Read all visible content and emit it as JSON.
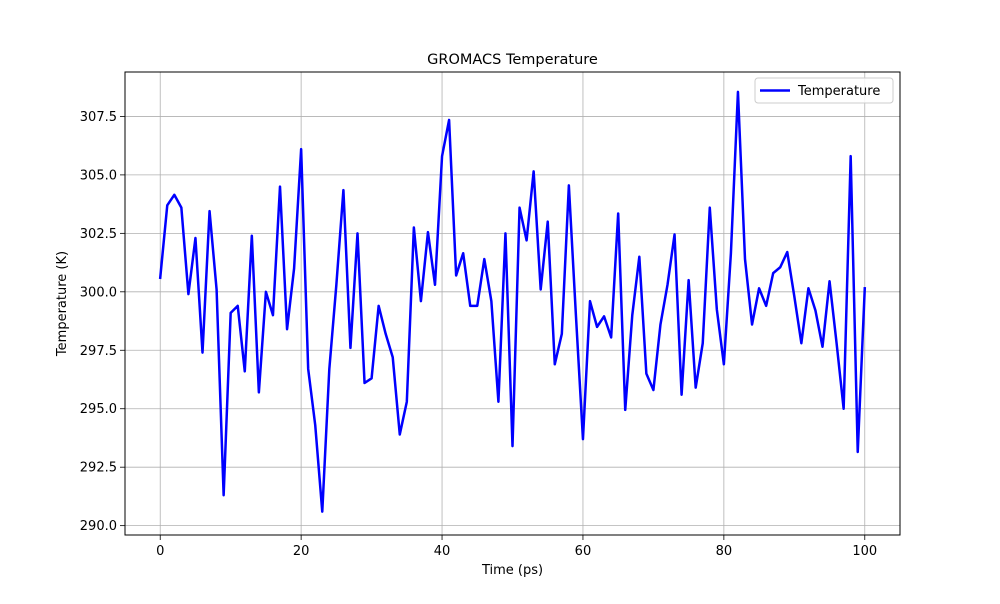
{
  "chart_data": {
    "type": "line",
    "title": "GROMACS Temperature",
    "xlabel": "Time (ps)",
    "ylabel": "Temperature (K)",
    "xlim": [
      -5,
      105
    ],
    "ylim": [
      289.6,
      309.4
    ],
    "x_ticks": [
      0,
      20,
      40,
      60,
      80,
      100
    ],
    "x_tick_labels": [
      "0",
      "20",
      "40",
      "60",
      "80",
      "100"
    ],
    "y_ticks": [
      290.0,
      292.5,
      295.0,
      297.5,
      300.0,
      302.5,
      305.0,
      307.5
    ],
    "y_tick_labels": [
      "290.0",
      "292.5",
      "295.0",
      "297.5",
      "300.0",
      "302.5",
      "305.0",
      "307.5"
    ],
    "grid": true,
    "legend_position": "upper right",
    "series": [
      {
        "name": "Temperature",
        "color": "#0000ff",
        "x": [
          0,
          1,
          2,
          3,
          4,
          5,
          6,
          7,
          8,
          9,
          10,
          11,
          12,
          13,
          14,
          15,
          16,
          17,
          18,
          19,
          20,
          21,
          22,
          23,
          24,
          25,
          26,
          27,
          28,
          29,
          30,
          31,
          32,
          33,
          34,
          35,
          36,
          37,
          38,
          39,
          40,
          41,
          42,
          43,
          44,
          45,
          46,
          47,
          48,
          49,
          50,
          51,
          52,
          53,
          54,
          55,
          56,
          57,
          58,
          59,
          60,
          61,
          62,
          63,
          64,
          65,
          66,
          67,
          68,
          69,
          70,
          71,
          72,
          73,
          74,
          75,
          76,
          77,
          78,
          79,
          80,
          81,
          82,
          83,
          84,
          85,
          86,
          87,
          88,
          89,
          90,
          91,
          92,
          93,
          94,
          95,
          96,
          97,
          98,
          99,
          100
        ],
        "y": [
          300.6,
          303.7,
          304.15,
          303.6,
          299.9,
          302.3,
          297.4,
          303.45,
          300.1,
          291.3,
          299.1,
          299.4,
          296.6,
          302.4,
          295.7,
          300.0,
          299.0,
          304.5,
          298.4,
          301.0,
          306.1,
          296.7,
          294.3,
          290.6,
          296.7,
          300.3,
          304.35,
          297.6,
          302.5,
          296.1,
          296.3,
          299.4,
          298.2,
          297.2,
          293.9,
          295.3,
          302.75,
          299.6,
          302.55,
          300.3,
          305.8,
          307.35,
          300.7,
          301.65,
          299.4,
          299.4,
          301.4,
          299.6,
          295.3,
          302.5,
          293.4,
          303.6,
          302.2,
          305.15,
          300.1,
          303.0,
          296.9,
          298.2,
          304.55,
          299.0,
          293.7,
          299.6,
          298.5,
          298.95,
          298.05,
          303.35,
          294.95,
          299.0,
          301.5,
          296.5,
          295.8,
          298.6,
          300.3,
          302.45,
          295.6,
          300.5,
          295.9,
          297.8,
          303.6,
          299.25,
          296.9,
          301.65,
          308.55,
          301.4,
          298.6,
          300.15,
          299.4,
          300.8,
          301.05,
          301.7,
          299.8,
          297.8,
          300.15,
          299.2,
          297.65,
          300.45,
          297.8,
          295.0,
          305.8,
          293.15,
          300.15
        ]
      }
    ]
  }
}
